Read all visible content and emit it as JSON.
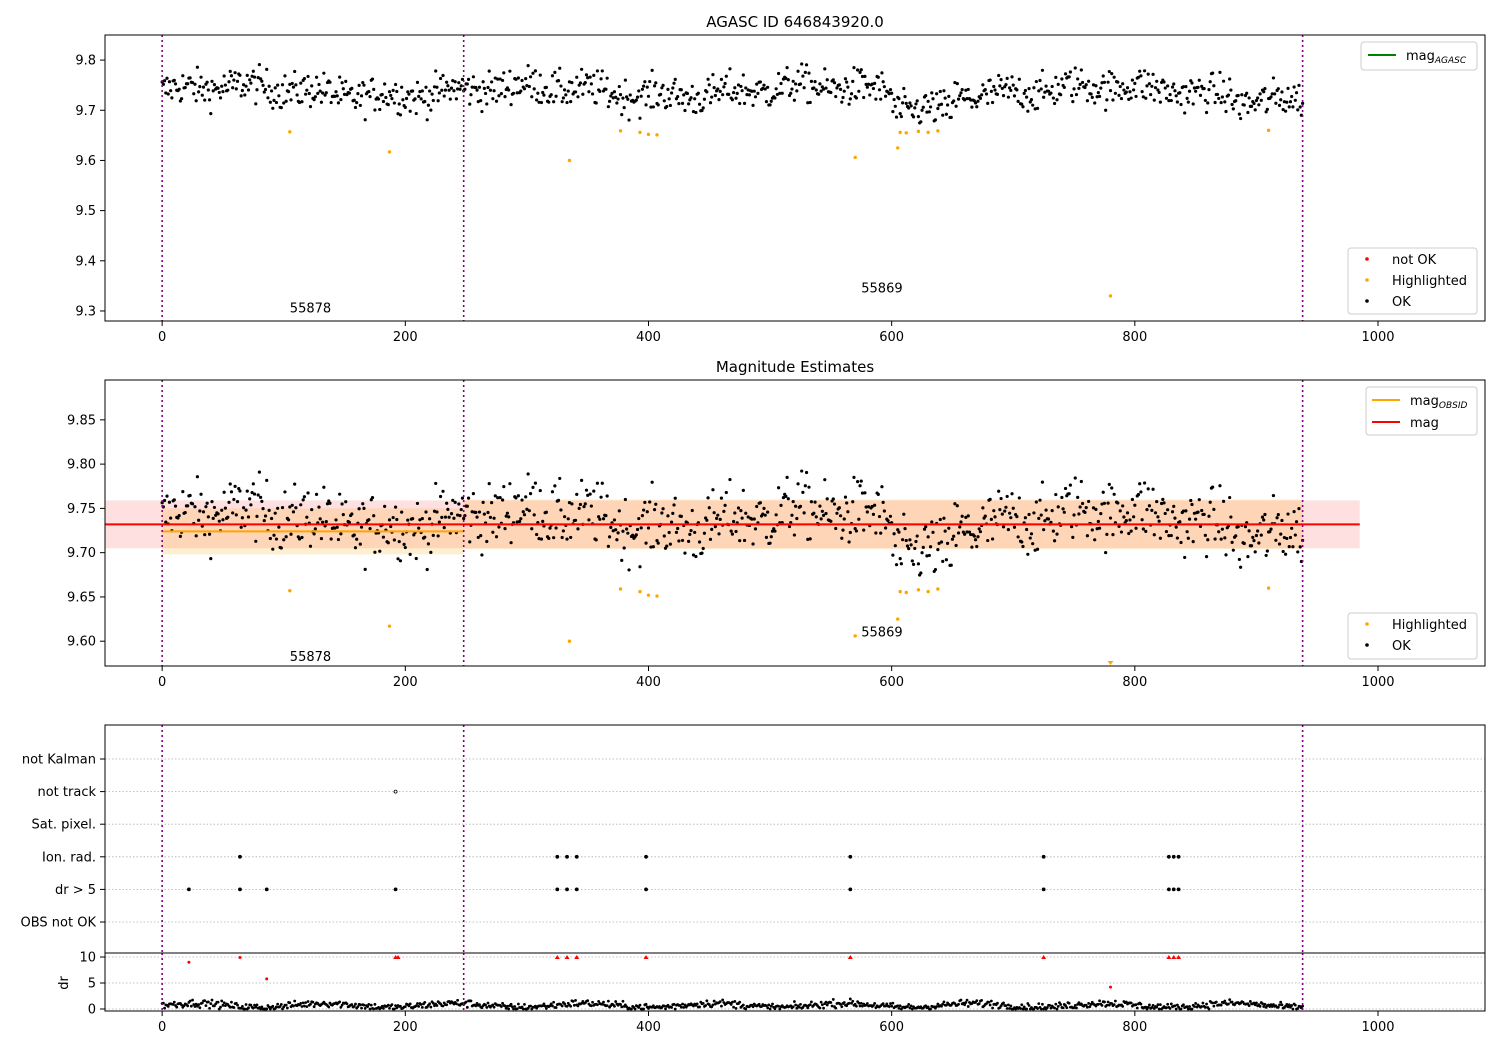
{
  "chart_data": [
    {
      "type": "scatter",
      "title": "AGASC ID 646843920.0",
      "xlim": [
        -47,
        1088
      ],
      "ylim": [
        9.28,
        9.85
      ],
      "xticks": [
        0,
        200,
        400,
        600,
        800,
        1000
      ],
      "yticks": [
        9.3,
        9.4,
        9.5,
        9.6,
        9.7,
        9.8
      ],
      "ytick_labels": [
        "9.3",
        "9.4",
        "9.5",
        "9.6",
        "9.7",
        "9.8"
      ],
      "obsid_boundaries": [
        0,
        248,
        938
      ],
      "annotations": [
        {
          "text": "55878",
          "x": 105,
          "y": 9.305
        },
        {
          "text": "55869",
          "x": 575,
          "y": 9.345
        }
      ],
      "legend_upper": {
        "position": "top-right",
        "entries": [
          {
            "label": "mag",
            "sub": "AGASC",
            "color": "#008000"
          }
        ]
      },
      "legend_lower": {
        "position": "bottom-right",
        "entries": [
          {
            "label": "not OK",
            "color": "#ff0000"
          },
          {
            "label": "Highlighted",
            "color": "#ffa500"
          },
          {
            "label": "OK",
            "color": "#000000"
          }
        ]
      },
      "highlighted_points": [
        [
          105,
          9.657
        ],
        [
          187,
          9.617
        ],
        [
          335,
          9.6
        ],
        [
          377,
          9.659
        ],
        [
          393,
          9.656
        ],
        [
          400,
          9.652
        ],
        [
          407,
          9.651
        ],
        [
          570,
          9.606
        ],
        [
          605,
          9.625
        ],
        [
          607,
          9.656
        ],
        [
          612,
          9.655
        ],
        [
          622,
          9.658
        ],
        [
          630,
          9.656
        ],
        [
          638,
          9.659
        ],
        [
          780,
          9.33
        ],
        [
          910,
          9.66
        ]
      ]
    },
    {
      "type": "scatter",
      "title": "Magnitude Estimates",
      "xlim": [
        -47,
        1088
      ],
      "ylim": [
        9.572,
        9.895
      ],
      "xticks": [
        0,
        200,
        400,
        600,
        800,
        1000
      ],
      "yticks": [
        9.6,
        9.65,
        9.7,
        9.75,
        9.8,
        9.85
      ],
      "ytick_labels": [
        "9.60",
        "9.65",
        "9.70",
        "9.75",
        "9.80",
        "9.85"
      ],
      "obsid_boundaries": [
        0,
        248,
        938
      ],
      "annotations": [
        {
          "text": "55878",
          "x": 105,
          "y": 9.582
        },
        {
          "text": "55869",
          "x": 575,
          "y": 9.61
        }
      ],
      "mag_line": {
        "value": 9.732,
        "band": [
          9.705,
          9.759
        ],
        "xrange": [
          -47,
          985
        ],
        "color": "#ff0000"
      },
      "obsid_segments": [
        {
          "x": [
            0,
            248
          ],
          "mag": 9.724,
          "band": [
            9.698,
            9.75
          ]
        },
        {
          "x": [
            248,
            938
          ],
          "mag": 9.732,
          "band": [
            9.704,
            9.76
          ]
        }
      ],
      "legend_upper": {
        "position": "top-right",
        "entries": [
          {
            "label": "mag",
            "sub": "OBSID",
            "color": "#ffa500"
          },
          {
            "label": "mag",
            "color": "#ff0000"
          }
        ]
      },
      "legend_lower": {
        "position": "bottom-right",
        "entries": [
          {
            "label": "Highlighted",
            "color": "#ffa500"
          },
          {
            "label": "OK",
            "color": "#000000"
          }
        ]
      },
      "highlighted_points": [
        [
          105,
          9.657
        ],
        [
          187,
          9.617
        ],
        [
          335,
          9.6
        ],
        [
          377,
          9.659
        ],
        [
          393,
          9.656
        ],
        [
          400,
          9.652
        ],
        [
          407,
          9.651
        ],
        [
          570,
          9.606
        ],
        [
          605,
          9.625
        ],
        [
          607,
          9.656
        ],
        [
          612,
          9.655
        ],
        [
          622,
          9.658
        ],
        [
          630,
          9.656
        ],
        [
          638,
          9.659
        ],
        [
          910,
          9.66
        ]
      ],
      "offscale_marker": {
        "x": 780,
        "color": "#ffa500"
      }
    },
    {
      "type": "scatter",
      "xlim": [
        -47,
        1088
      ],
      "xticks": [
        0,
        200,
        400,
        600,
        800,
        1000
      ],
      "obsid_boundaries": [
        0,
        248,
        938
      ],
      "flag_rows": [
        "not Kalman",
        "not track",
        "Sat. pixel.",
        "Ion. rad.",
        "dr > 5",
        "OBS not OK"
      ],
      "flags": {
        "not Kalman": [],
        "not track": [
          192
        ],
        "Sat. pixel.": [],
        "Ion. rad.": [
          64,
          325,
          333,
          341,
          398,
          566,
          725,
          828,
          832,
          836
        ],
        "dr > 5": [
          22,
          64,
          86,
          192,
          325,
          333,
          341,
          398,
          566,
          725,
          828,
          832,
          836
        ],
        "OBS not OK": []
      },
      "dr_panel": {
        "ylabel": "dr",
        "ylim": [
          0,
          10.5
        ],
        "yticks": [
          0,
          5,
          10
        ],
        "ytick_labels": [
          "0",
          "5",
          "10"
        ],
        "red_points": [
          [
            22,
            9.0
          ],
          [
            64,
            9.9
          ],
          [
            86,
            5.8
          ],
          [
            192,
            10
          ],
          [
            194,
            10
          ],
          [
            325,
            10
          ],
          [
            333,
            10
          ],
          [
            341,
            10
          ],
          [
            398,
            10
          ],
          [
            566,
            10
          ],
          [
            725,
            10
          ],
          [
            780,
            4.2
          ],
          [
            828,
            10
          ],
          [
            832,
            10
          ],
          [
            836,
            10
          ]
        ]
      }
    }
  ]
}
